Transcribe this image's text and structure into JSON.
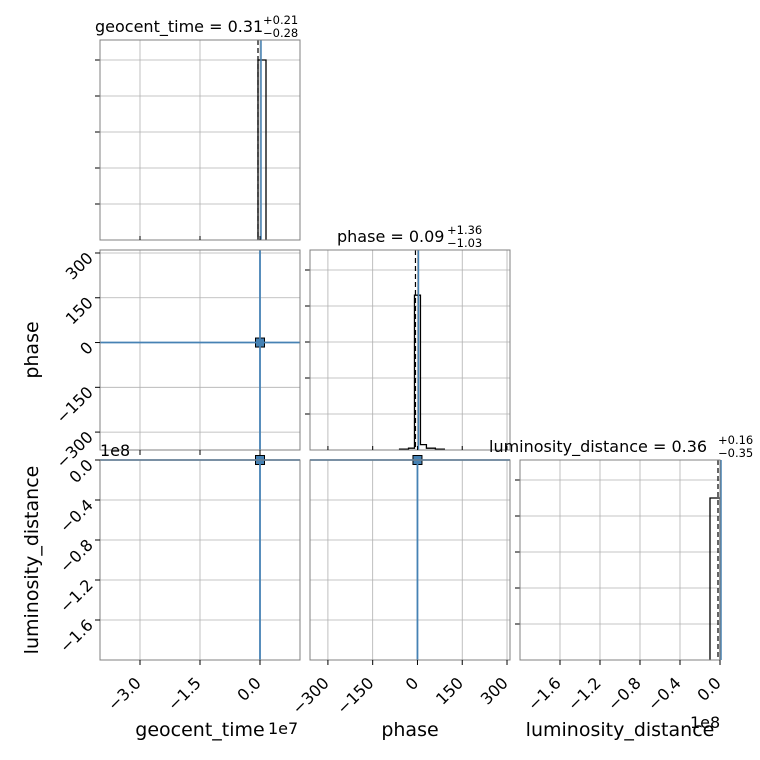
{
  "chart_data": {
    "type": "corner",
    "parameters": [
      "geocent_time",
      "phase",
      "luminosity_distance"
    ],
    "titles": [
      {
        "name": "geocent_time",
        "median": "0.31",
        "plus": "+0.21",
        "minus": "−0.28"
      },
      {
        "name": "phase",
        "median": "0.09",
        "plus": "+1.36",
        "minus": "−1.03"
      },
      {
        "name": "luminosity_distance",
        "median": "0.36",
        "plus": "+0.16",
        "minus": "−0.35"
      }
    ],
    "axes": {
      "geocent_time": {
        "range": [
          -4.0,
          1.0
        ],
        "ticks": [
          -3.0,
          -1.5,
          0.0
        ],
        "tick_labels": [
          "−3.0",
          "−1.5",
          "0.0"
        ],
        "offset": "1e7",
        "truth": 0.0
      },
      "phase": {
        "range": [
          -360,
          310
        ],
        "ticks": [
          -300,
          -150,
          0,
          150,
          300
        ],
        "tick_labels": [
          "−300",
          "−150",
          "0",
          "150",
          "300"
        ],
        "offset": "",
        "truth": 0
      },
      "luminosity_distance": {
        "range": [
          -2.0,
          0.0
        ],
        "ticks": [
          -1.6,
          -1.2,
          -0.8,
          -0.4,
          0.0
        ],
        "tick_labels": [
          "−1.6",
          "−1.2",
          "−0.8",
          "−0.4",
          "0.0"
        ],
        "offset": "1e8",
        "truth": 0.0
      }
    },
    "histograms": {
      "geocent_time": {
        "edges": [
          -0.05,
          0.05,
          0.15
        ],
        "counts": [
          1.0,
          1.0
        ]
      },
      "phase": {
        "edges": [
          -60,
          -30,
          -10,
          0,
          10,
          30,
          60,
          90
        ],
        "counts": [
          0.005,
          0.01,
          0.86,
          0.86,
          0.03,
          0.01,
          0.005
        ]
      },
      "luminosity_distance": {
        "edges": [
          -0.1,
          -0.01,
          0.0
        ],
        "counts": [
          0.9,
          0.9
        ]
      }
    },
    "grid": true,
    "truth_color": "#4682b4",
    "hist_color": "#000000",
    "quantile_line_style": "dashed"
  }
}
